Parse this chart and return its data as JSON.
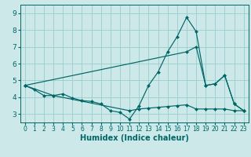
{
  "xlabel": "Humidex (Indice chaleur)",
  "bg_color": "#cce8e8",
  "grid_color": "#99cccc",
  "line_color": "#006666",
  "xlim": [
    -0.5,
    23.5
  ],
  "ylim": [
    2.5,
    9.5
  ],
  "yticks": [
    3,
    4,
    5,
    6,
    7,
    8,
    9
  ],
  "xticks": [
    0,
    1,
    2,
    3,
    4,
    5,
    6,
    7,
    8,
    9,
    10,
    11,
    12,
    13,
    14,
    15,
    16,
    17,
    18,
    19,
    20,
    21,
    22,
    23
  ],
  "line1_x": [
    0,
    1,
    2,
    3,
    4,
    5,
    6,
    7,
    8,
    9,
    10,
    11,
    12,
    13,
    14,
    15,
    16,
    17,
    18,
    19,
    20,
    21,
    22,
    23
  ],
  "line1_y": [
    4.7,
    4.45,
    4.1,
    4.1,
    4.2,
    3.95,
    3.8,
    3.75,
    3.6,
    3.2,
    3.1,
    2.7,
    3.5,
    4.7,
    5.5,
    6.7,
    7.6,
    8.75,
    7.9,
    4.7,
    4.8,
    5.3,
    3.6,
    3.2
  ],
  "line2_x": [
    0,
    3,
    11,
    12,
    13,
    14,
    15,
    16,
    17,
    18,
    19,
    20,
    21,
    22,
    23
  ],
  "line2_y": [
    4.7,
    4.1,
    3.2,
    3.3,
    3.35,
    3.4,
    3.45,
    3.5,
    3.55,
    3.3,
    3.3,
    3.3,
    3.3,
    3.2,
    3.2
  ],
  "line3_x": [
    0,
    17,
    18,
    19,
    20,
    21,
    22,
    23
  ],
  "line3_y": [
    4.7,
    6.7,
    7.0,
    4.7,
    4.8,
    5.3,
    3.6,
    3.2
  ],
  "xlabel_fontsize": 7,
  "tick_fontsize_x": 5.5,
  "tick_fontsize_y": 6.5
}
